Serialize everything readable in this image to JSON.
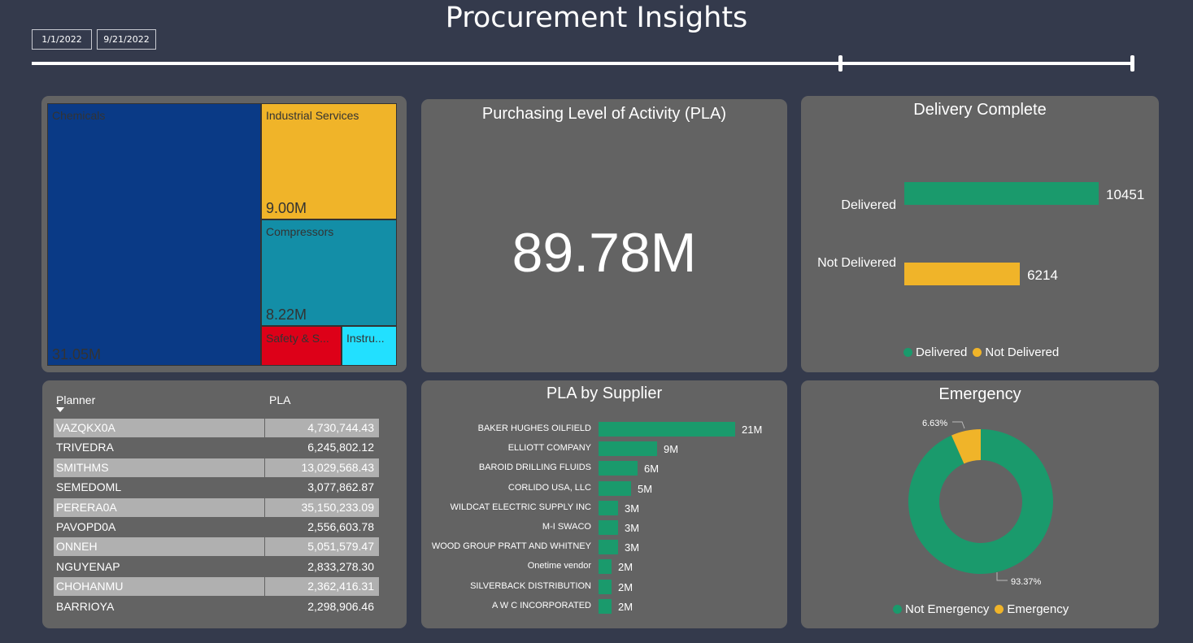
{
  "header": {
    "title": "Procurement Insights",
    "date_start": "1/1/2022",
    "date_end": "9/21/2022"
  },
  "treemap": {
    "items": [
      {
        "label": "Chemicals",
        "value": "31.05M",
        "color": "#0a3a86"
      },
      {
        "label": "Industrial Services",
        "value": "9.00M",
        "color": "#f0b429"
      },
      {
        "label": "Compressors",
        "value": "8.22M",
        "color": "#138ea7"
      },
      {
        "label": "Safety & S...",
        "value": "",
        "color": "#dd0018"
      },
      {
        "label": "Instru...",
        "value": "",
        "color": "#22e0ff"
      }
    ]
  },
  "pla_card": {
    "title": "Purchasing Level of Activity (PLA)",
    "value": "89.78M"
  },
  "delivery": {
    "title": "Delivery Complete",
    "bars": [
      {
        "label": "Delivered",
        "value": 10451,
        "value_text": "10451",
        "color": "#1a9a6c"
      },
      {
        "label": "Not Delivered",
        "value": 6214,
        "value_text": "6214",
        "color": "#f0b429"
      }
    ],
    "legend": [
      {
        "label": "Delivered",
        "color": "#1a9a6c"
      },
      {
        "label": "Not Delivered",
        "color": "#f0b429"
      }
    ]
  },
  "planner_table": {
    "col_planner": "Planner",
    "col_pla": "PLA",
    "rows": [
      {
        "planner": "VAZQKX0A",
        "pla": "4,730,744.43"
      },
      {
        "planner": "TRIVEDRA",
        "pla": "6,245,802.12"
      },
      {
        "planner": "SMITHMS",
        "pla": "13,029,568.43"
      },
      {
        "planner": "SEMEDOML",
        "pla": "3,077,862.87"
      },
      {
        "planner": "PERERA0A",
        "pla": "35,150,233.09"
      },
      {
        "planner": "PAVOPD0A",
        "pla": "2,556,603.78"
      },
      {
        "planner": "ONNEH",
        "pla": "5,051,579.47"
      },
      {
        "planner": "NGUYENAP",
        "pla": "2,833,278.30"
      },
      {
        "planner": "CHOHANMU",
        "pla": "2,362,416.31"
      },
      {
        "planner": "BARRIOYA",
        "pla": "2,298,906.46"
      }
    ]
  },
  "supplier": {
    "title": "PLA by Supplier",
    "items": [
      {
        "name": "BAKER HUGHES OILFIELD",
        "value": 21,
        "label": "21M"
      },
      {
        "name": "ELLIOTT COMPANY",
        "value": 9,
        "label": "9M"
      },
      {
        "name": "BAROID DRILLING FLUIDS",
        "value": 6,
        "label": "6M"
      },
      {
        "name": "CORLIDO USA, LLC",
        "value": 5,
        "label": "5M"
      },
      {
        "name": "WILDCAT ELECTRIC SUPPLY INC",
        "value": 3,
        "label": "3M"
      },
      {
        "name": "M-I SWACO",
        "value": 3,
        "label": "3M"
      },
      {
        "name": "WOOD GROUP PRATT AND WHITNEY",
        "value": 3,
        "label": "3M"
      },
      {
        "name": "Onetime vendor",
        "value": 2,
        "label": "2M"
      },
      {
        "name": "SILVERBACK DISTRIBUTION",
        "value": 2,
        "label": "2M"
      },
      {
        "name": "A W C INCORPORATED",
        "value": 2,
        "label": "2M"
      }
    ],
    "color": "#1a9a6c"
  },
  "emergency": {
    "title": "Emergency",
    "slices": [
      {
        "label": "Not Emergency",
        "percent": 93.37,
        "text": "93.37%",
        "color": "#1a9a6c"
      },
      {
        "label": "Emergency",
        "percent": 6.63,
        "text": "6.63%",
        "color": "#f0b429"
      }
    ]
  }
}
